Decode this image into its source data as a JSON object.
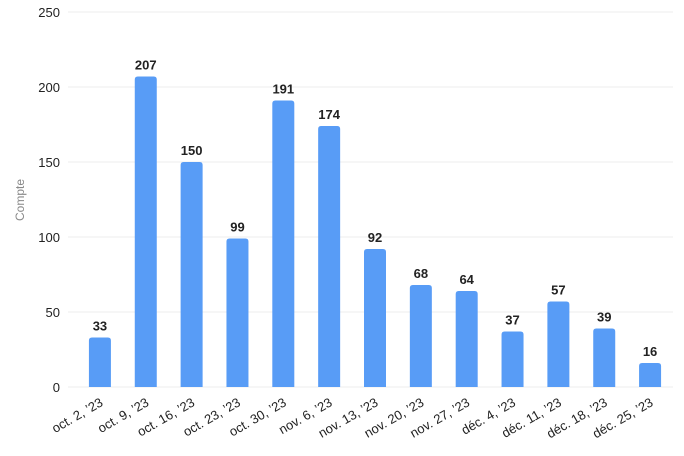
{
  "chart_data": {
    "type": "bar",
    "y_label": "Compte",
    "categories": [
      "oct. 2, ’23",
      "oct. 9, ’23",
      "oct. 16, ’23",
      "oct. 23, ’23",
      "oct. 30, ’23",
      "nov. 6, ’23",
      "nov. 13, ’23",
      "nov. 20, ’23",
      "nov. 27, ’23",
      "déc. 4, ’23",
      "déc. 11, ’23",
      "déc. 18, ’23",
      "déc. 25, ’23"
    ],
    "values": [
      33,
      207,
      150,
      99,
      191,
      174,
      92,
      68,
      64,
      37,
      57,
      39,
      16
    ],
    "color": "#589cf6",
    "ylim": [
      0,
      250
    ],
    "yticks": [
      0,
      50,
      100,
      150,
      200,
      250
    ],
    "grid": true
  }
}
